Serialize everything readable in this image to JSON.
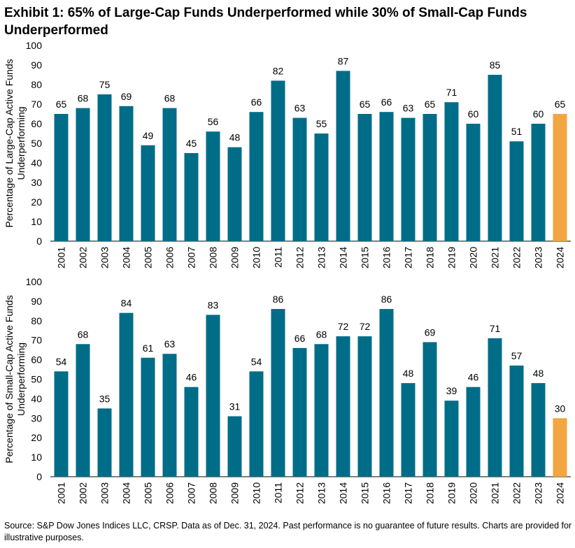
{
  "title": "Exhibit 1: 65% of Large-Cap Funds Underperformed while 30% of Small-Cap Funds Underperformed",
  "source": "Source: S&P Dow Jones Indices LLC, CRSP. Data as of Dec. 31, 2024. Past performance is no guarantee of future results. Charts are provided for illustrative purposes.",
  "colors": {
    "bar": "#006D88",
    "highlight": "#F2A541"
  },
  "chart_data": [
    {
      "type": "bar",
      "ylabel": "Percentage of Large-Cap Active Funds Underperforming",
      "ylim": [
        0,
        100
      ],
      "yticks": [
        0,
        10,
        20,
        30,
        40,
        50,
        60,
        70,
        80,
        90,
        100
      ],
      "grid": false,
      "categories": [
        "2001",
        "2002",
        "2003",
        "2004",
        "2005",
        "2006",
        "2007",
        "2008",
        "2009",
        "2010",
        "2011",
        "2012",
        "2013",
        "2014",
        "2015",
        "2016",
        "2017",
        "2018",
        "2019",
        "2020",
        "2021",
        "2022",
        "2023",
        "2024"
      ],
      "values": [
        65,
        68,
        75,
        69,
        49,
        68,
        45,
        56,
        48,
        66,
        82,
        63,
        55,
        87,
        65,
        66,
        63,
        65,
        71,
        60,
        85,
        51,
        60,
        65
      ],
      "highlight": "2024"
    },
    {
      "type": "bar",
      "ylabel": "Percentage of Small-Cap Active Funds Underperforming",
      "ylim": [
        0,
        100
      ],
      "yticks": [
        0,
        10,
        20,
        30,
        40,
        50,
        60,
        70,
        80,
        90,
        100
      ],
      "grid": false,
      "categories": [
        "2001",
        "2002",
        "2003",
        "2004",
        "2005",
        "2006",
        "2007",
        "2008",
        "2009",
        "2010",
        "2011",
        "2012",
        "2013",
        "2014",
        "2015",
        "2016",
        "2017",
        "2018",
        "2019",
        "2020",
        "2021",
        "2022",
        "2023",
        "2024"
      ],
      "values": [
        54,
        68,
        35,
        84,
        61,
        63,
        46,
        83,
        31,
        54,
        86,
        66,
        68,
        72,
        72,
        86,
        48,
        69,
        39,
        46,
        71,
        57,
        48,
        30
      ],
      "highlight": "2024"
    }
  ]
}
